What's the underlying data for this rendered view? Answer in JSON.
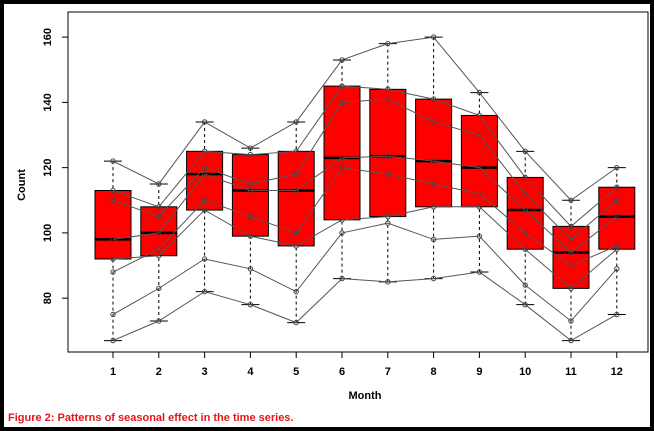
{
  "chart_data": {
    "type": "boxplot",
    "caption": "Figure 2: Patterns of seasonal effect in the time series.",
    "x_label": "Month",
    "y_label": "Count",
    "categories": [
      "1",
      "2",
      "3",
      "4",
      "5",
      "6",
      "7",
      "8",
      "9",
      "10",
      "11",
      "12"
    ],
    "min": [
      67,
      73,
      82,
      78,
      72.5,
      86,
      85,
      86,
      88,
      78,
      67,
      75
    ],
    "q1": [
      92,
      93,
      107,
      99,
      96,
      104,
      105,
      108,
      108,
      95,
      83,
      95
    ],
    "median": [
      98,
      100,
      118,
      113,
      113,
      123,
      123.5,
      122,
      120,
      107,
      94,
      105
    ],
    "q3": [
      113,
      108,
      125,
      124,
      125,
      145,
      144,
      141,
      136,
      117,
      102,
      114
    ],
    "max": [
      122,
      115,
      134,
      126,
      134,
      153,
      158,
      160,
      143,
      125,
      110,
      120
    ],
    "color": "#ff0000",
    "line_color": "#555555",
    "series": [
      {
        "values": [
          67,
          73,
          82,
          78,
          72.5,
          86,
          85,
          86,
          88,
          78,
          67,
          75
        ]
      },
      {
        "values": [
          122,
          115,
          134,
          126,
          134,
          153,
          158,
          160,
          143,
          125,
          110,
          120
        ]
      },
      {
        "values": [
          113,
          108,
          125,
          124,
          125,
          145,
          144,
          141,
          136,
          117,
          102,
          114
        ]
      },
      {
        "values": [
          98,
          100,
          118,
          113,
          113,
          123,
          123.5,
          122,
          120,
          107,
          94,
          105
        ]
      },
      {
        "values": [
          92,
          93,
          107,
          99,
          96,
          104,
          105,
          108,
          108,
          95,
          83,
          95
        ]
      },
      {
        "values": [
          110,
          105,
          120,
          115,
          118,
          140,
          141,
          134,
          130,
          112,
          98,
          110
        ]
      },
      {
        "values": [
          88,
          95,
          110,
          105,
          100,
          120,
          118,
          115,
          112,
          100,
          90,
          96
        ]
      },
      {
        "values": [
          75,
          83,
          92,
          89,
          82,
          100,
          103,
          98,
          99,
          84,
          73,
          89
        ]
      }
    ],
    "ylim": [
      63.5,
      167.7
    ],
    "yticks": [
      80,
      100,
      120,
      140,
      160
    ]
  }
}
